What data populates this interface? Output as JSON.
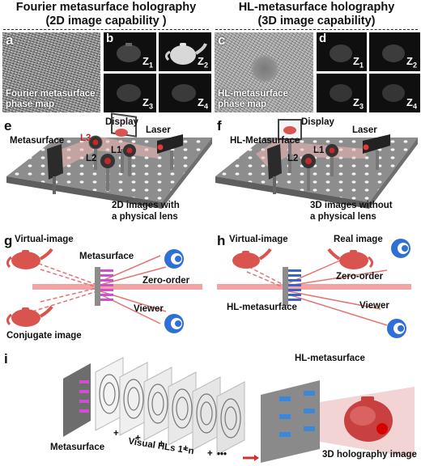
{
  "headers": {
    "left": {
      "line1": "Fourier metasurface holography",
      "line2": "(2D image capability )"
    },
    "right": {
      "line1": "HL-metasurface holography",
      "line2": "(3D image capability)"
    }
  },
  "panels": {
    "a": {
      "letter": "a",
      "caption_line1": "Fourier  metasurface",
      "caption_line2": "phase map"
    },
    "b": {
      "letter": "b",
      "z": [
        "Z",
        "Z",
        "Z",
        "Z"
      ],
      "z_sub": [
        "1",
        "2",
        "3",
        "4"
      ]
    },
    "c": {
      "letter": "c",
      "caption_line1": "HL-metasurface",
      "caption_line2": "phase map"
    },
    "d": {
      "letter": "d",
      "z": [
        "Z",
        "Z",
        "Z",
        "Z"
      ],
      "z_sub": [
        "1",
        "2",
        "3",
        "4"
      ]
    },
    "e": {
      "letter": "e",
      "metasurface": "Metasurface",
      "display": "Display",
      "laser": "Laser",
      "l3": "L3",
      "l2": "L2",
      "l1": "L1",
      "caption_line1": "2D images with",
      "caption_line2": "a physical lens"
    },
    "f": {
      "letter": "f",
      "metasurface": "HL-Metasurface",
      "display": "Display",
      "laser": "Laser",
      "l2": "L2",
      "l1": "L1",
      "caption_line1": "3D images without",
      "caption_line2": "a physical lens"
    },
    "g": {
      "letter": "g",
      "virtual": "Virtual-image",
      "metasurface": "Metasurface",
      "zero_order": "Zero-order",
      "viewer": "Viewer",
      "conjugate": "Conjugate image"
    },
    "h": {
      "letter": "h",
      "virtual": "Virtual-image",
      "real": "Real image",
      "zero_order": "Zero-order",
      "hl_metasurface": "HL-metasurface",
      "viewer": "Viewer"
    },
    "i": {
      "letter": "i",
      "hl_metasurface": "HL-metasurface",
      "metasurface": "Metasurface",
      "visual_hls": "Visual HLs 1~n",
      "plus": "+",
      "dots": "•••",
      "result": "3D holography image"
    }
  },
  "colors": {
    "accent_red": "#d9534f",
    "laser_red": "#e53935",
    "pink": "#d04fd0",
    "blue": "#3366cc",
    "cyan": "#1e88e5",
    "board": "#9e9e9e"
  }
}
